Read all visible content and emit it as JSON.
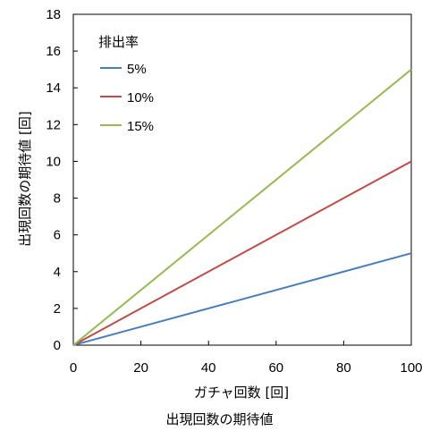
{
  "chart_data": {
    "type": "line",
    "title": "出現回数の期待値",
    "xlabel": "ガチャ回数 [回]",
    "ylabel": "出現回数の期待値 [回]",
    "xlim": [
      0,
      100
    ],
    "ylim": [
      0,
      18
    ],
    "x_ticks": [
      0,
      20,
      40,
      60,
      80,
      100
    ],
    "y_ticks": [
      0,
      2,
      4,
      6,
      8,
      10,
      12,
      14,
      16,
      18
    ],
    "grid": false,
    "legend": {
      "title": "排出率",
      "position": "top-left"
    },
    "x": [
      0,
      100
    ],
    "series": [
      {
        "name": "5%",
        "values": [
          0,
          5
        ],
        "color": "#4a7ebb"
      },
      {
        "name": "10%",
        "values": [
          0,
          10
        ],
        "color": "#be4b48"
      },
      {
        "name": "15%",
        "values": [
          0,
          15
        ],
        "color": "#98b954"
      }
    ]
  }
}
